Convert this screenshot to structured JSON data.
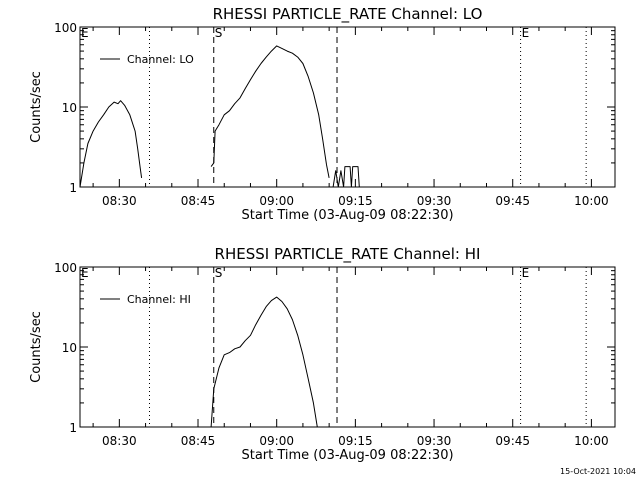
{
  "timestamp": "15-Oct-2021 10:04",
  "chart_data": [
    {
      "type": "line",
      "title": "RHESSI PARTICLE_RATE Channel: LO",
      "xlabel": "Start Time (03-Aug-09 08:22:30)",
      "ylabel": "Counts/sec",
      "legend": "Channel: LO",
      "legend_position": "top-left",
      "yscale": "log",
      "ylim": [
        1,
        100
      ],
      "xlim": [
        "08:22:30",
        "10:04:30"
      ],
      "x_ticks": [
        "08:30",
        "08:45",
        "09:00",
        "09:15",
        "09:30",
        "09:45",
        "10:00"
      ],
      "y_ticks": [
        "1",
        "10",
        "100"
      ],
      "markers": [
        {
          "label": "E",
          "time": "08:22:30",
          "style": "none"
        },
        {
          "label": "",
          "time": "08:35:45",
          "style": "dotted"
        },
        {
          "label": "S",
          "time": "08:48:00",
          "style": "dashed"
        },
        {
          "label": "",
          "time": "09:11:30",
          "style": "dashed"
        },
        {
          "label": "E",
          "time": "09:46:30",
          "style": "dotted"
        },
        {
          "label": "",
          "time": "09:59:00",
          "style": "dotted"
        }
      ],
      "series": [
        {
          "segments": [
            [
              [
                "08:22:30",
                1.0
              ],
              [
                "08:23:15",
                2.0
              ],
              [
                "08:24:00",
                3.5
              ],
              [
                "08:25:00",
                5.0
              ],
              [
                "08:26:00",
                6.5
              ],
              [
                "08:27:00",
                8.0
              ],
              [
                "08:28:00",
                10.0
              ],
              [
                "08:29:00",
                11.5
              ],
              [
                "08:29:45",
                11.0
              ],
              [
                "08:30:15",
                12.0
              ],
              [
                "08:31:00",
                10.5
              ],
              [
                "08:32:00",
                8.0
              ],
              [
                "08:33:00",
                5.0
              ],
              [
                "08:33:30",
                3.0
              ],
              [
                "08:34:00",
                1.7
              ],
              [
                "08:34:15",
                1.3
              ]
            ],
            [
              [
                "08:47:30",
                1.8
              ],
              [
                "08:48:00",
                2.0
              ],
              [
                "08:48:15",
                5.0
              ],
              [
                "08:49:00",
                6.0
              ],
              [
                "08:50:00",
                8.0
              ],
              [
                "08:51:00",
                9.0
              ],
              [
                "08:52:00",
                11.0
              ],
              [
                "08:53:00",
                13.0
              ],
              [
                "08:54:00",
                17.0
              ],
              [
                "08:55:00",
                22.0
              ],
              [
                "08:56:00",
                28.0
              ],
              [
                "08:57:00",
                35.0
              ],
              [
                "08:58:00",
                42.0
              ],
              [
                "08:59:00",
                50.0
              ],
              [
                "09:00:00",
                58.0
              ],
              [
                "09:01:00",
                54.0
              ],
              [
                "09:02:00",
                50.0
              ],
              [
                "09:03:00",
                47.0
              ],
              [
                "09:04:00",
                42.0
              ],
              [
                "09:05:00",
                35.0
              ],
              [
                "09:06:00",
                24.0
              ],
              [
                "09:07:00",
                15.0
              ],
              [
                "09:08:00",
                8.0
              ],
              [
                "09:08:45",
                4.0
              ],
              [
                "09:09:30",
                1.9
              ],
              [
                "09:10:00",
                1.3
              ]
            ],
            [
              [
                "09:10:45",
                1.0
              ],
              [
                "09:11:15",
                1.6
              ],
              [
                "09:11:45",
                1.0
              ],
              [
                "09:12:15",
                1.6
              ],
              [
                "09:12:45",
                1.0
              ],
              [
                "09:13:00",
                1.8
              ],
              [
                "09:14:00",
                1.8
              ],
              [
                "09:14:15",
                1.0
              ],
              [
                "09:14:30",
                1.8
              ],
              [
                "09:15:30",
                1.8
              ],
              [
                "09:15:45",
                1.0
              ]
            ]
          ]
        }
      ]
    },
    {
      "type": "line",
      "title": "RHESSI PARTICLE_RATE Channel: HI",
      "xlabel": "Start Time (03-Aug-09 08:22:30)",
      "ylabel": "Counts/sec",
      "legend": "Channel: HI",
      "legend_position": "top-left",
      "yscale": "log",
      "ylim": [
        1,
        100
      ],
      "xlim": [
        "08:22:30",
        "10:04:30"
      ],
      "x_ticks": [
        "08:30",
        "08:45",
        "09:00",
        "09:15",
        "09:30",
        "09:45",
        "10:00"
      ],
      "y_ticks": [
        "1",
        "10",
        "100"
      ],
      "markers": [
        {
          "label": "E",
          "time": "08:22:30",
          "style": "none"
        },
        {
          "label": "",
          "time": "08:35:45",
          "style": "dotted"
        },
        {
          "label": "S",
          "time": "08:48:00",
          "style": "dashed"
        },
        {
          "label": "",
          "time": "09:11:30",
          "style": "dashed"
        },
        {
          "label": "E",
          "time": "09:46:30",
          "style": "dotted"
        },
        {
          "label": "",
          "time": "09:59:00",
          "style": "dotted"
        }
      ],
      "series": [
        {
          "segments": [
            [
              [
                "08:47:30",
                1.0
              ],
              [
                "08:48:00",
                3.0
              ],
              [
                "08:49:00",
                5.5
              ],
              [
                "08:50:00",
                8.0
              ],
              [
                "08:51:00",
                8.5
              ],
              [
                "08:52:00",
                9.5
              ],
              [
                "08:53:00",
                10.0
              ],
              [
                "08:54:00",
                12.0
              ],
              [
                "08:55:00",
                14.0
              ],
              [
                "08:56:00",
                19.0
              ],
              [
                "08:57:00",
                25.0
              ],
              [
                "08:58:00",
                32.0
              ],
              [
                "08:59:00",
                38.0
              ],
              [
                "09:00:00",
                42.0
              ],
              [
                "09:01:00",
                37.0
              ],
              [
                "09:02:00",
                30.0
              ],
              [
                "09:03:00",
                22.0
              ],
              [
                "09:04:00",
                14.0
              ],
              [
                "09:05:00",
                8.0
              ],
              [
                "09:06:00",
                4.0
              ],
              [
                "09:07:00",
                2.0
              ],
              [
                "09:07:45",
                1.0
              ]
            ]
          ]
        }
      ]
    }
  ]
}
